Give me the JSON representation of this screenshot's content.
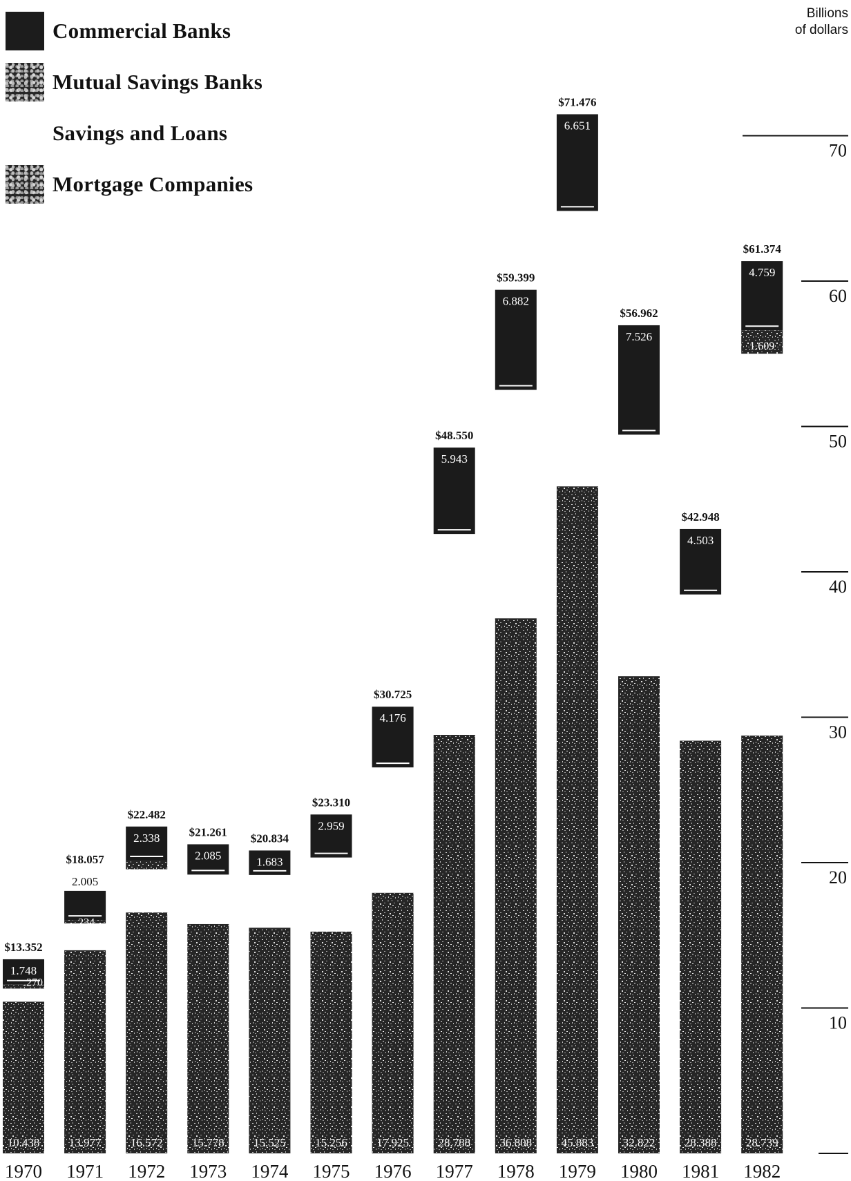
{
  "legend": {
    "items": [
      {
        "label": "Commercial Banks",
        "swatch": "dark"
      },
      {
        "label": "Mutual Savings Banks",
        "swatch": "speckled"
      },
      {
        "label": "Savings and Loans",
        "swatch": "none"
      },
      {
        "label": "Mortgage Companies",
        "swatch": "speckled"
      }
    ]
  },
  "axis": {
    "unit_line1": "Billions",
    "unit_line2": "of dollars"
  },
  "colors": {
    "bar_dark": "#1b1b1b",
    "bar_speckle": "#262626",
    "speckle_light": "#d6d6d6",
    "label_white": "#ffffff",
    "ink": "#111111"
  },
  "chart_data": {
    "type": "bar",
    "stacked": true,
    "title": "",
    "xlabel": "",
    "ylabel": "Billions of dollars",
    "ylim": [
      0,
      75
    ],
    "yticks": [
      10,
      20,
      30,
      40,
      50,
      60,
      70
    ],
    "grid": false,
    "legend_position": "top-left",
    "categories": [
      "1970",
      "1971",
      "1972",
      "1973",
      "1974",
      "1975",
      "1976",
      "1977",
      "1978",
      "1979",
      "1980",
      "1981",
      "1982"
    ],
    "series": [
      {
        "name": "Mortgage Companies",
        "values": [
          10.438,
          13.977,
          16.572,
          15.778,
          15.525,
          15.256,
          17.925,
          28.788,
          36.808,
          45.883,
          32.822,
          28.388,
          28.739
        ],
        "labels": [
          "10.438",
          "13.977",
          "16.572",
          "15.778",
          "15.525",
          "15.256",
          "17.925",
          "28.788",
          "36.808",
          "45.883",
          "32.822",
          "28.388",
          "28.739"
        ]
      },
      {
        "name": "Savings and Loans",
        "values": [
          0.896,
          1.841,
          2.972,
          3.398,
          3.626,
          5.095,
          8.624,
          13.819,
          15.709,
          18.942,
          16.614,
          10.057,
          26.267
        ],
        "labels": [
          "",
          "",
          "",
          "",
          "",
          "",
          "",
          "",
          "",
          "",
          "",
          "",
          ""
        ]
      },
      {
        "name": "Mutual Savings Banks",
        "values": [
          0.27,
          0.234,
          0.6,
          0.0,
          0.0,
          0.0,
          0.0,
          0.0,
          0.0,
          0.0,
          0.0,
          0.0,
          1.609
        ],
        "labels": [
          ".270",
          ".234",
          "",
          "",
          "",
          "",
          "",
          "",
          "",
          "",
          "",
          "",
          "1.609"
        ]
      },
      {
        "name": "Commercial Banks",
        "values": [
          1.748,
          2.005,
          2.338,
          2.085,
          1.683,
          2.959,
          4.176,
          5.943,
          6.882,
          6.651,
          7.526,
          4.503,
          4.759
        ],
        "labels": [
          "1.748",
          "2.005",
          "2.338",
          "2.085",
          "1.683",
          "2.959",
          "4.176",
          "5.943",
          "6.882",
          "6.651",
          "7.526",
          "4.503",
          "4.759"
        ]
      }
    ],
    "totals": [
      13.352,
      18.057,
      22.482,
      21.261,
      20.834,
      23.31,
      30.725,
      48.55,
      59.399,
      71.476,
      56.962,
      42.948,
      61.374
    ],
    "total_labels": [
      "$13.352",
      "$18.057",
      "$22.482",
      "$21.261",
      "$20.834",
      "$23.310",
      "$30.725",
      "$48.550",
      "$59.399",
      "$71.476",
      "$56.962",
      "$42.948",
      "$61.374"
    ],
    "tick_labels": [
      "10",
      "20",
      "30",
      "40",
      "50",
      "60",
      "70"
    ]
  }
}
